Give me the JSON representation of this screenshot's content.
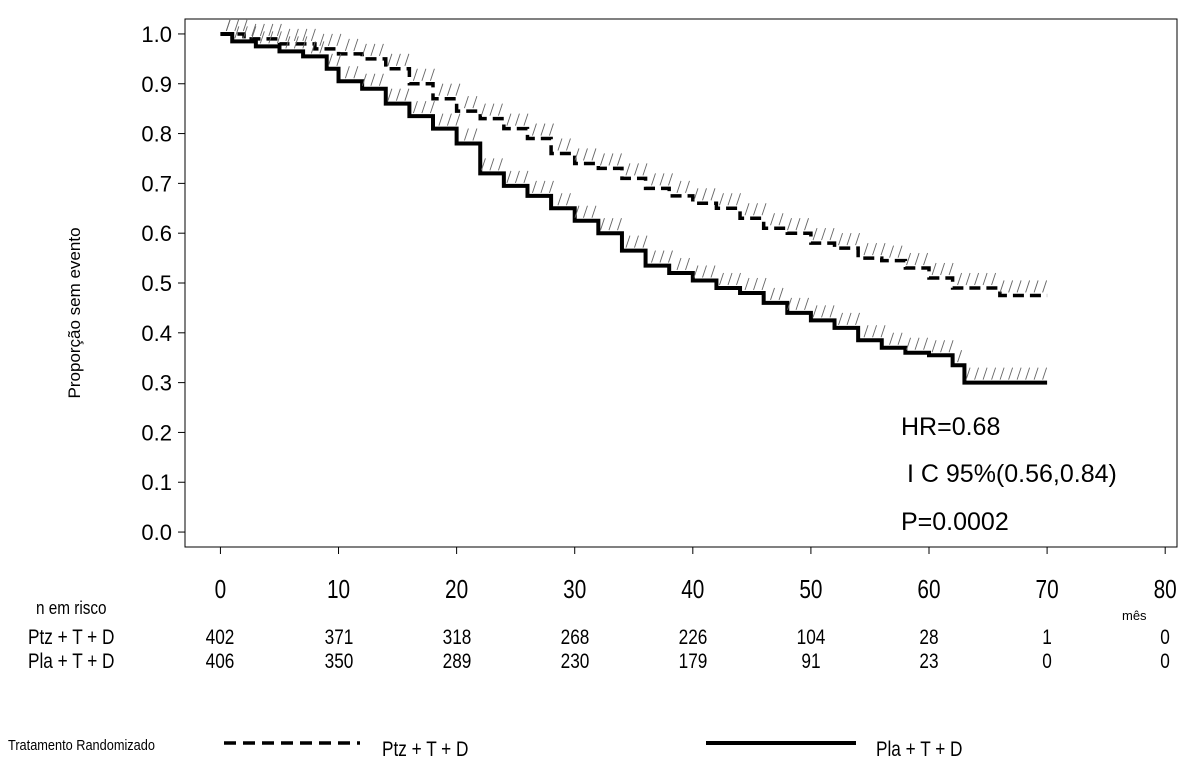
{
  "chart_data": {
    "type": "line",
    "ylabel": "Proporção sem evento",
    "xlabel": "mês",
    "xlim": [
      -3,
      81
    ],
    "ylim": [
      -0.03,
      1.03
    ],
    "x_ticks": [
      0,
      10,
      20,
      30,
      40,
      50,
      60,
      70,
      80
    ],
    "y_ticks": [
      0.0,
      0.1,
      0.2,
      0.3,
      0.4,
      0.5,
      0.6,
      0.7,
      0.8,
      0.9,
      1.0
    ],
    "y_tick_labels": [
      "0.0",
      "0.1",
      "0.2",
      "0.3",
      "0.4",
      "0.5",
      "0.6",
      "0.7",
      "0.8",
      "0.9",
      "1.0"
    ],
    "grid": false,
    "legend_placement": "bottom",
    "series": [
      {
        "name": "Ptz + T + D",
        "style": "dashed",
        "x": [
          0,
          2,
          5,
          8,
          10,
          12,
          14,
          16,
          18,
          20,
          22,
          24,
          26,
          28,
          30,
          32,
          34,
          36,
          38,
          40,
          42,
          44,
          46,
          48,
          50,
          52,
          54,
          56,
          58,
          60,
          62,
          66,
          70
        ],
        "y": [
          1.0,
          0.99,
          0.98,
          0.97,
          0.96,
          0.95,
          0.93,
          0.9,
          0.87,
          0.845,
          0.83,
          0.81,
          0.79,
          0.76,
          0.74,
          0.73,
          0.71,
          0.69,
          0.675,
          0.66,
          0.65,
          0.63,
          0.61,
          0.6,
          0.58,
          0.57,
          0.55,
          0.545,
          0.53,
          0.51,
          0.49,
          0.475,
          0.475
        ]
      },
      {
        "name": "Pla + T + D",
        "style": "solid",
        "x": [
          0,
          1,
          3,
          5,
          7,
          9,
          10,
          12,
          14,
          16,
          18,
          20,
          22,
          24,
          26,
          28,
          30,
          32,
          34,
          36,
          38,
          40,
          42,
          44,
          46,
          48,
          50,
          52,
          54,
          56,
          58,
          60,
          62,
          63,
          66,
          70
        ],
        "y": [
          1.0,
          0.985,
          0.975,
          0.965,
          0.955,
          0.93,
          0.905,
          0.89,
          0.86,
          0.835,
          0.81,
          0.78,
          0.72,
          0.695,
          0.675,
          0.65,
          0.625,
          0.6,
          0.565,
          0.535,
          0.52,
          0.505,
          0.49,
          0.48,
          0.46,
          0.44,
          0.425,
          0.41,
          0.385,
          0.37,
          0.36,
          0.355,
          0.335,
          0.3,
          0.3,
          0.3
        ]
      }
    ],
    "annotations": [
      "HR=0.68",
      "I C 95%(0.56,0.84)",
      "P=0.0002"
    ]
  },
  "risk_table": {
    "header": "n em risco",
    "columns": [
      0,
      10,
      20,
      30,
      40,
      50,
      60,
      70,
      80
    ],
    "rows": [
      {
        "label": "Ptz  +  T  +  D",
        "values": [
          "402",
          "371",
          "318",
          "268",
          "226",
          "104",
          "28",
          "1",
          "0"
        ]
      },
      {
        "label": "Pla  +  T  +  D",
        "values": [
          "406",
          "350",
          "289",
          "230",
          "179",
          "91",
          "23",
          "0",
          "0"
        ]
      }
    ]
  },
  "legend": {
    "title": "Tratamento Randomizado",
    "items": [
      {
        "label": "Ptz  +  T  +  D",
        "style": "dashed"
      },
      {
        "label": "Pla  +  T  +  D",
        "style": "solid"
      }
    ]
  }
}
